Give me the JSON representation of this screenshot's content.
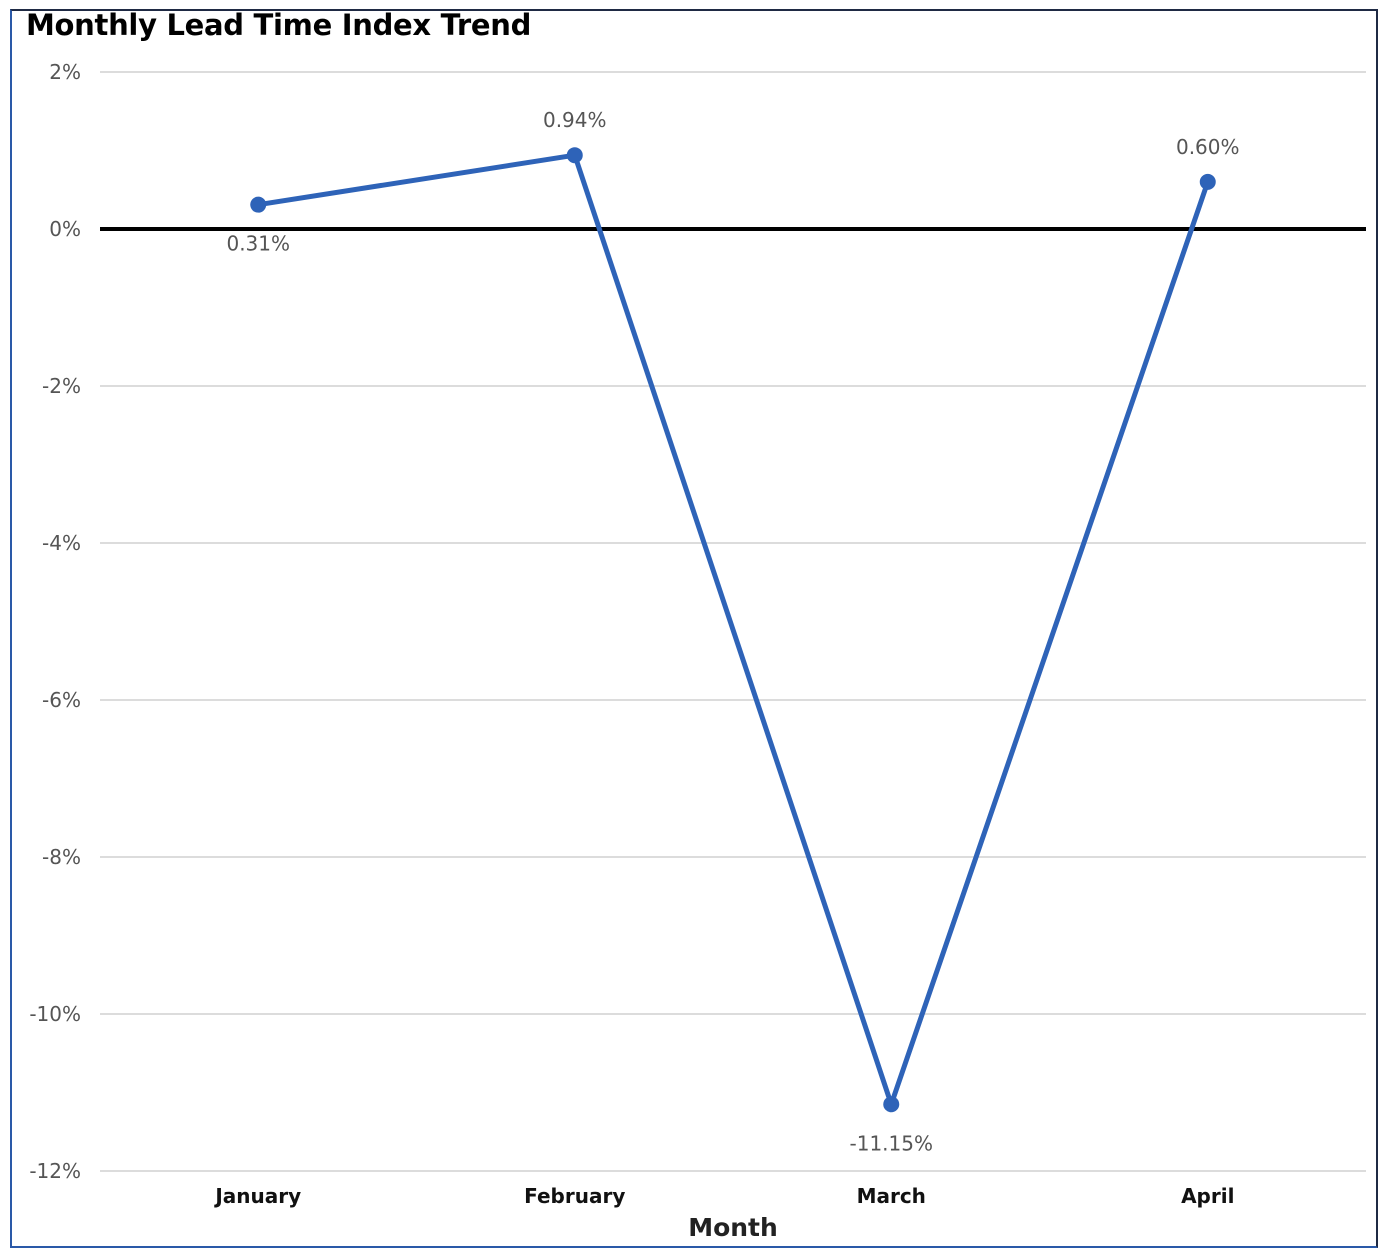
{
  "chart_data": {
    "type": "line",
    "title": "Monthly Lead Time Index Trend",
    "xlabel": "Month",
    "ylabel": "",
    "categories": [
      "January",
      "February",
      "March",
      "April"
    ],
    "series": [
      {
        "values": [
          0.31,
          0.94,
          -11.15,
          0.6
        ],
        "data_labels": [
          "0.31%",
          "0.94%",
          "-11.15%",
          "0.60%"
        ]
      }
    ],
    "ylim": [
      -12,
      2
    ],
    "yticks": [
      2,
      0,
      -2,
      -4,
      -6,
      -8,
      -10,
      -12
    ],
    "ytick_labels": [
      "2%",
      "0%",
      "-2%",
      "-4%",
      "-6%",
      "-8%",
      "-10%",
      "-12%"
    ],
    "grid": true,
    "zero_line": true,
    "colors": {
      "line": "#2e63b8",
      "zero_line": "#000000",
      "grid": "#d0d0d0"
    }
  }
}
